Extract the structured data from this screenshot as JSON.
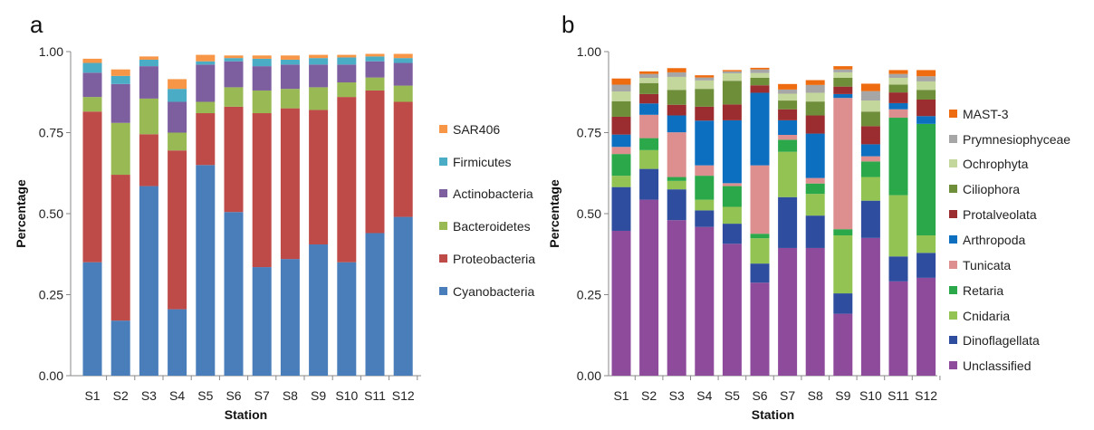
{
  "chart_data": [
    {
      "type": "bar",
      "stacked": true,
      "panel_label": "a",
      "xlabel": "Station",
      "ylabel": "Percentage",
      "ylim": [
        0,
        1
      ],
      "yticks": [
        "0.00",
        "0.25",
        "0.50",
        "0.75",
        "1.00"
      ],
      "legend_position": "right",
      "categories": [
        "S1",
        "S2",
        "S3",
        "S4",
        "S5",
        "S6",
        "S7",
        "S8",
        "S9",
        "S10",
        "S11",
        "S12"
      ],
      "series": [
        {
          "name": "Cyanobacteria",
          "color": "#4a7ebb",
          "values": [
            0.35,
            0.17,
            0.585,
            0.205,
            0.65,
            0.505,
            0.335,
            0.36,
            0.405,
            0.35,
            0.44,
            0.49
          ]
        },
        {
          "name": "Proteobacteria",
          "color": "#be4b48",
          "values": [
            0.465,
            0.45,
            0.16,
            0.49,
            0.16,
            0.325,
            0.475,
            0.465,
            0.415,
            0.51,
            0.44,
            0.355
          ]
        },
        {
          "name": "Bacteroidetes",
          "color": "#98b954",
          "values": [
            0.045,
            0.16,
            0.11,
            0.055,
            0.035,
            0.06,
            0.07,
            0.06,
            0.07,
            0.045,
            0.04,
            0.05
          ]
        },
        {
          "name": "Actinobacteria",
          "color": "#7d5fa0",
          "values": [
            0.075,
            0.12,
            0.1,
            0.095,
            0.115,
            0.08,
            0.075,
            0.075,
            0.07,
            0.055,
            0.05,
            0.07
          ]
        },
        {
          "name": "Firmicutes",
          "color": "#4bacc6",
          "values": [
            0.03,
            0.025,
            0.02,
            0.04,
            0.01,
            0.01,
            0.023,
            0.015,
            0.02,
            0.022,
            0.015,
            0.015
          ]
        },
        {
          "name": "SAR406",
          "color": "#f79646",
          "values": [
            0.013,
            0.02,
            0.01,
            0.03,
            0.02,
            0.008,
            0.01,
            0.013,
            0.01,
            0.008,
            0.008,
            0.013
          ]
        }
      ]
    },
    {
      "type": "bar",
      "stacked": true,
      "panel_label": "b",
      "xlabel": "Station",
      "ylabel": "Percentage",
      "ylim": [
        0,
        1
      ],
      "yticks": [
        "0.00",
        "0.25",
        "0.50",
        "0.75",
        "1.00"
      ],
      "legend_position": "right",
      "categories": [
        "S1",
        "S2",
        "S3",
        "S4",
        "S5",
        "S6",
        "S7",
        "S8",
        "S9",
        "S10",
        "S11",
        "S12"
      ],
      "series": [
        {
          "name": "Unclassified",
          "color": "#8e4b9c",
          "values": [
            0.447,
            0.543,
            0.48,
            0.459,
            0.407,
            0.287,
            0.394,
            0.394,
            0.191,
            0.425,
            0.291,
            0.302
          ]
        },
        {
          "name": "Dinoflagellata",
          "color": "#2e4d9e",
          "values": [
            0.135,
            0.095,
            0.095,
            0.051,
            0.062,
            0.059,
            0.157,
            0.1,
            0.063,
            0.115,
            0.077,
            0.077
          ]
        },
        {
          "name": "Cnidaria",
          "color": "#92c353",
          "values": [
            0.035,
            0.058,
            0.026,
            0.033,
            0.052,
            0.078,
            0.14,
            0.067,
            0.179,
            0.073,
            0.189,
            0.054
          ]
        },
        {
          "name": "Retaria",
          "color": "#2ba84a",
          "values": [
            0.067,
            0.037,
            0.012,
            0.074,
            0.064,
            0.014,
            0.037,
            0.032,
            0.019,
            0.048,
            0.239,
            0.344
          ]
        },
        {
          "name": "Tunicata",
          "color": "#dd8f8f",
          "values": [
            0.022,
            0.072,
            0.138,
            0.032,
            0.009,
            0.211,
            0.015,
            0.017,
            0.405,
            0.016,
            0.026,
            0.0
          ]
        },
        {
          "name": "Arthropoda",
          "color": "#0c6fc0",
          "values": [
            0.038,
            0.035,
            0.052,
            0.138,
            0.194,
            0.224,
            0.045,
            0.137,
            0.012,
            0.037,
            0.019,
            0.024
          ]
        },
        {
          "name": "Protalveolata",
          "color": "#9b2d30",
          "values": [
            0.055,
            0.029,
            0.033,
            0.043,
            0.049,
            0.023,
            0.034,
            0.056,
            0.023,
            0.056,
            0.033,
            0.051
          ]
        },
        {
          "name": "Ciliophora",
          "color": "#6f8e3a",
          "values": [
            0.048,
            0.034,
            0.046,
            0.055,
            0.073,
            0.023,
            0.027,
            0.043,
            0.027,
            0.045,
            0.024,
            0.03
          ]
        },
        {
          "name": "Ochrophyta",
          "color": "#c3d69b",
          "values": [
            0.03,
            0.016,
            0.04,
            0.026,
            0.023,
            0.015,
            0.021,
            0.027,
            0.017,
            0.034,
            0.021,
            0.026
          ]
        },
        {
          "name": "Prymnesiophyceae",
          "color": "#a6a6a6",
          "values": [
            0.021,
            0.012,
            0.014,
            0.009,
            0.006,
            0.011,
            0.013,
            0.024,
            0.009,
            0.029,
            0.012,
            0.016
          ]
        },
        {
          "name": "MAST-3",
          "color": "#ee6c0f",
          "values": [
            0.019,
            0.008,
            0.013,
            0.007,
            0.004,
            0.005,
            0.017,
            0.015,
            0.01,
            0.023,
            0.012,
            0.019
          ]
        }
      ]
    }
  ]
}
